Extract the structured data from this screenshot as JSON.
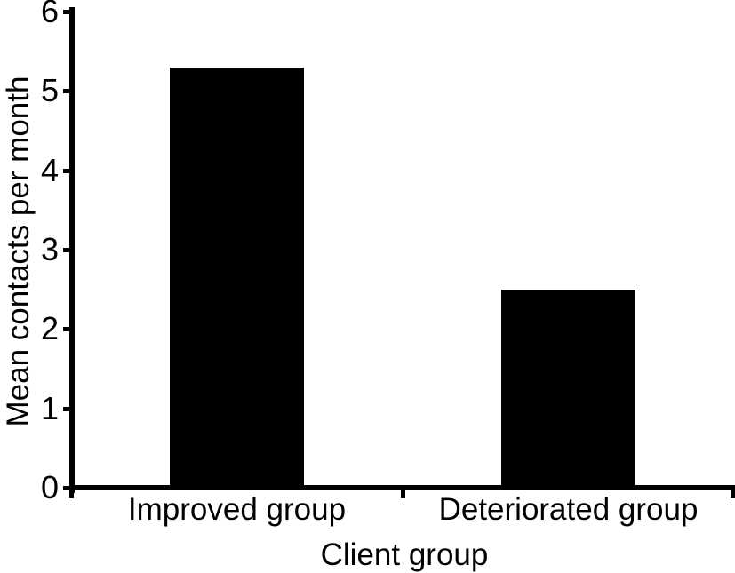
{
  "chart_data": {
    "type": "bar",
    "title": "",
    "categories": [
      "Improved group",
      "Deteriorated group"
    ],
    "values": [
      5.3,
      2.5
    ],
    "xlabel": "Client group",
    "ylabel": "Mean contacts per month",
    "ylim": [
      0,
      6
    ],
    "yticks": [
      0,
      1,
      2,
      3,
      4,
      5,
      6
    ],
    "bar_color": "#000000",
    "axis_color": "#000000",
    "background_color": "#ffffff",
    "grid": false,
    "legend": null
  }
}
